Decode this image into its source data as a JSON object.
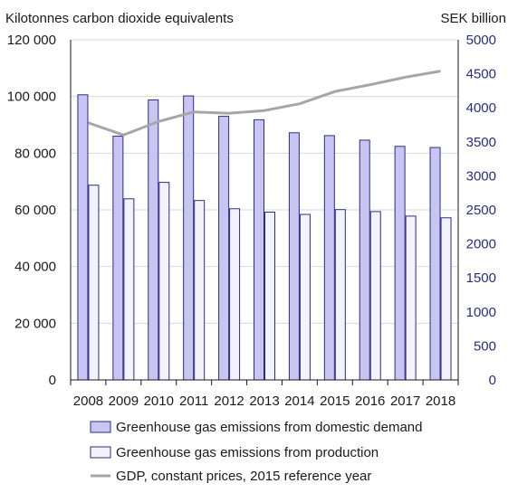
{
  "chart_data": {
    "type": "bar",
    "title": "",
    "y_left_label": "Kilotonnes carbon dioxide equivalents",
    "y_right_label": "SEK billion",
    "ylim_left": [
      0,
      120000
    ],
    "ylim_right": [
      0,
      5000
    ],
    "y_left_ticks": [
      0,
      20000,
      40000,
      60000,
      80000,
      100000,
      120000
    ],
    "y_left_tick_labels": [
      "0",
      "20 000",
      "40 000",
      "60 000",
      "80 000",
      "100 000",
      "120 000"
    ],
    "y_right_ticks": [
      0,
      500,
      1000,
      1500,
      2000,
      2500,
      3000,
      3500,
      4000,
      4500,
      5000
    ],
    "y_right_tick_labels": [
      "0",
      "500",
      "1000",
      "1500",
      "2000",
      "2500",
      "3000",
      "3500",
      "4000",
      "4500",
      "5000"
    ],
    "categories": [
      "2008",
      "2009",
      "2010",
      "2011",
      "2012",
      "2013",
      "2014",
      "2015",
      "2016",
      "2017",
      "2018"
    ],
    "series": [
      {
        "name": "Greenhouse gas emissions from domestic demand",
        "kind": "bar",
        "axis": "left",
        "color": "#c8c6f0",
        "values": [
          100600,
          86000,
          98800,
          100200,
          93000,
          91800,
          87200,
          86200,
          84600,
          82400,
          82000
        ]
      },
      {
        "name": "Greenhouse gas emissions from production",
        "kind": "bar",
        "axis": "left",
        "color": "#f4f3fd",
        "values": [
          68700,
          63900,
          69700,
          63300,
          60400,
          59200,
          58400,
          60100,
          59400,
          57800,
          57200
        ]
      },
      {
        "name": "GDP, constant prices, 2015 reference year",
        "kind": "line",
        "axis": "right",
        "color": "#a6a6a6",
        "values": [
          3780,
          3600,
          3800,
          3940,
          3920,
          3960,
          4060,
          4240,
          4340,
          4450,
          4540
        ]
      }
    ],
    "grid": true,
    "legend_position": "bottom"
  }
}
